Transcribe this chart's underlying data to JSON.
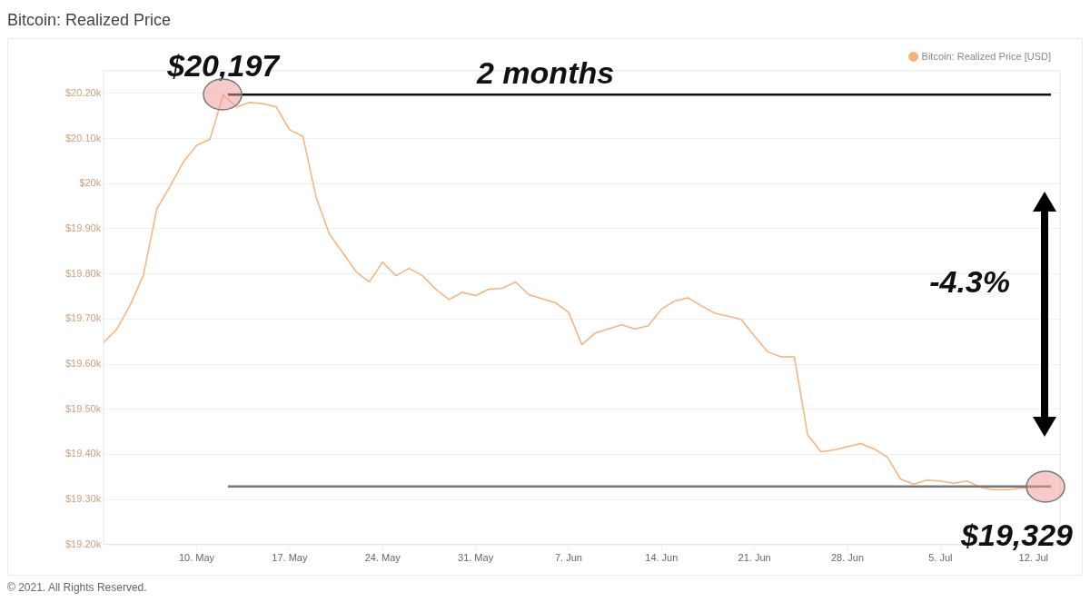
{
  "chart_data": {
    "type": "line",
    "title": "Bitcoin: Realized Price",
    "x": [
      "2021-05-03",
      "2021-05-04",
      "2021-05-05",
      "2021-05-06",
      "2021-05-07",
      "2021-05-08",
      "2021-05-09",
      "2021-05-10",
      "2021-05-11",
      "2021-05-12",
      "2021-05-13",
      "2021-05-14",
      "2021-05-15",
      "2021-05-16",
      "2021-05-17",
      "2021-05-18",
      "2021-05-19",
      "2021-05-20",
      "2021-05-21",
      "2021-05-22",
      "2021-05-23",
      "2021-05-24",
      "2021-05-25",
      "2021-05-26",
      "2021-05-27",
      "2021-05-28",
      "2021-05-29",
      "2021-05-30",
      "2021-05-31",
      "2021-06-01",
      "2021-06-02",
      "2021-06-03",
      "2021-06-04",
      "2021-06-05",
      "2021-06-06",
      "2021-06-07",
      "2021-06-08",
      "2021-06-09",
      "2021-06-10",
      "2021-06-11",
      "2021-06-12",
      "2021-06-13",
      "2021-06-14",
      "2021-06-15",
      "2021-06-16",
      "2021-06-17",
      "2021-06-18",
      "2021-06-19",
      "2021-06-20",
      "2021-06-21",
      "2021-06-22",
      "2021-06-23",
      "2021-06-24",
      "2021-06-25",
      "2021-06-26",
      "2021-06-27",
      "2021-06-28",
      "2021-06-29",
      "2021-06-30",
      "2021-07-01",
      "2021-07-02",
      "2021-07-03",
      "2021-07-04",
      "2021-07-05",
      "2021-07-06",
      "2021-07-07",
      "2021-07-08",
      "2021-07-09",
      "2021-07-10",
      "2021-07-11",
      "2021-07-12",
      "2021-07-13"
    ],
    "series": [
      {
        "name": "Bitcoin: Realized Price [USD]",
        "color": "#f5b27c",
        "values": [
          19648,
          19678,
          19731,
          19798,
          19944,
          19994,
          20048,
          20085,
          20098,
          20197,
          20170,
          20180,
          20177,
          20170,
          20119,
          20105,
          19969,
          19888,
          19847,
          19805,
          19782,
          19826,
          19796,
          19812,
          19796,
          19766,
          19743,
          19759,
          19752,
          19766,
          19768,
          19782,
          19754,
          19745,
          19736,
          19715,
          19643,
          19669,
          19678,
          19687,
          19678,
          19685,
          19722,
          19740,
          19747,
          19729,
          19713,
          19706,
          19699,
          19662,
          19627,
          19616,
          19616,
          19443,
          19406,
          19410,
          19417,
          19424,
          19412,
          19394,
          19345,
          19334,
          19343,
          19341,
          19336,
          19341,
          19327,
          19322,
          19322,
          19325,
          19327,
          19329
        ]
      }
    ],
    "xlim": [
      "2021-05-03",
      "2021-07-14"
    ],
    "xticks": [
      {
        "value": "2021-05-10",
        "label": "10. May"
      },
      {
        "value": "2021-05-17",
        "label": "17. May"
      },
      {
        "value": "2021-05-24",
        "label": "24. May"
      },
      {
        "value": "2021-05-31",
        "label": "31. May"
      },
      {
        "value": "2021-06-07",
        "label": "7. Jun"
      },
      {
        "value": "2021-06-14",
        "label": "14. Jun"
      },
      {
        "value": "2021-06-21",
        "label": "21. Jun"
      },
      {
        "value": "2021-06-28",
        "label": "28. Jun"
      },
      {
        "value": "2021-07-05",
        "label": "5. Jul"
      },
      {
        "value": "2021-07-12",
        "label": "12. Jul"
      }
    ],
    "ylim": [
      19200,
      20250
    ],
    "yticks": [
      {
        "value": 19200,
        "label": "$19.20k"
      },
      {
        "value": 19300,
        "label": "$19.30k"
      },
      {
        "value": 19400,
        "label": "$19.40k"
      },
      {
        "value": 19500,
        "label": "$19.50k"
      },
      {
        "value": 19600,
        "label": "$19.60k"
      },
      {
        "value": 19700,
        "label": "$19.70k"
      },
      {
        "value": 19800,
        "label": "$19.80k"
      },
      {
        "value": 19900,
        "label": "$19.90k"
      },
      {
        "value": 20000,
        "label": "$20k"
      },
      {
        "value": 20100,
        "label": "$20.10k"
      },
      {
        "value": 20200,
        "label": "$20.20k"
      }
    ],
    "grid": "y",
    "legend": "top right",
    "marker": "none",
    "line_style": "solid",
    "ref_lines": [
      {
        "axis": "y",
        "value": 20197,
        "color": "#111111"
      },
      {
        "axis": "y",
        "value": 19329,
        "color": "#777777"
      }
    ],
    "annotations": [
      {
        "text": "$20,197",
        "x": "2021-05-12",
        "y": 20197
      },
      {
        "text": "$19,329",
        "x": "2021-07-13",
        "y": 19329
      },
      "2 months",
      "-4.3%",
      "© 2021. All Rights Reserved."
    ]
  }
}
